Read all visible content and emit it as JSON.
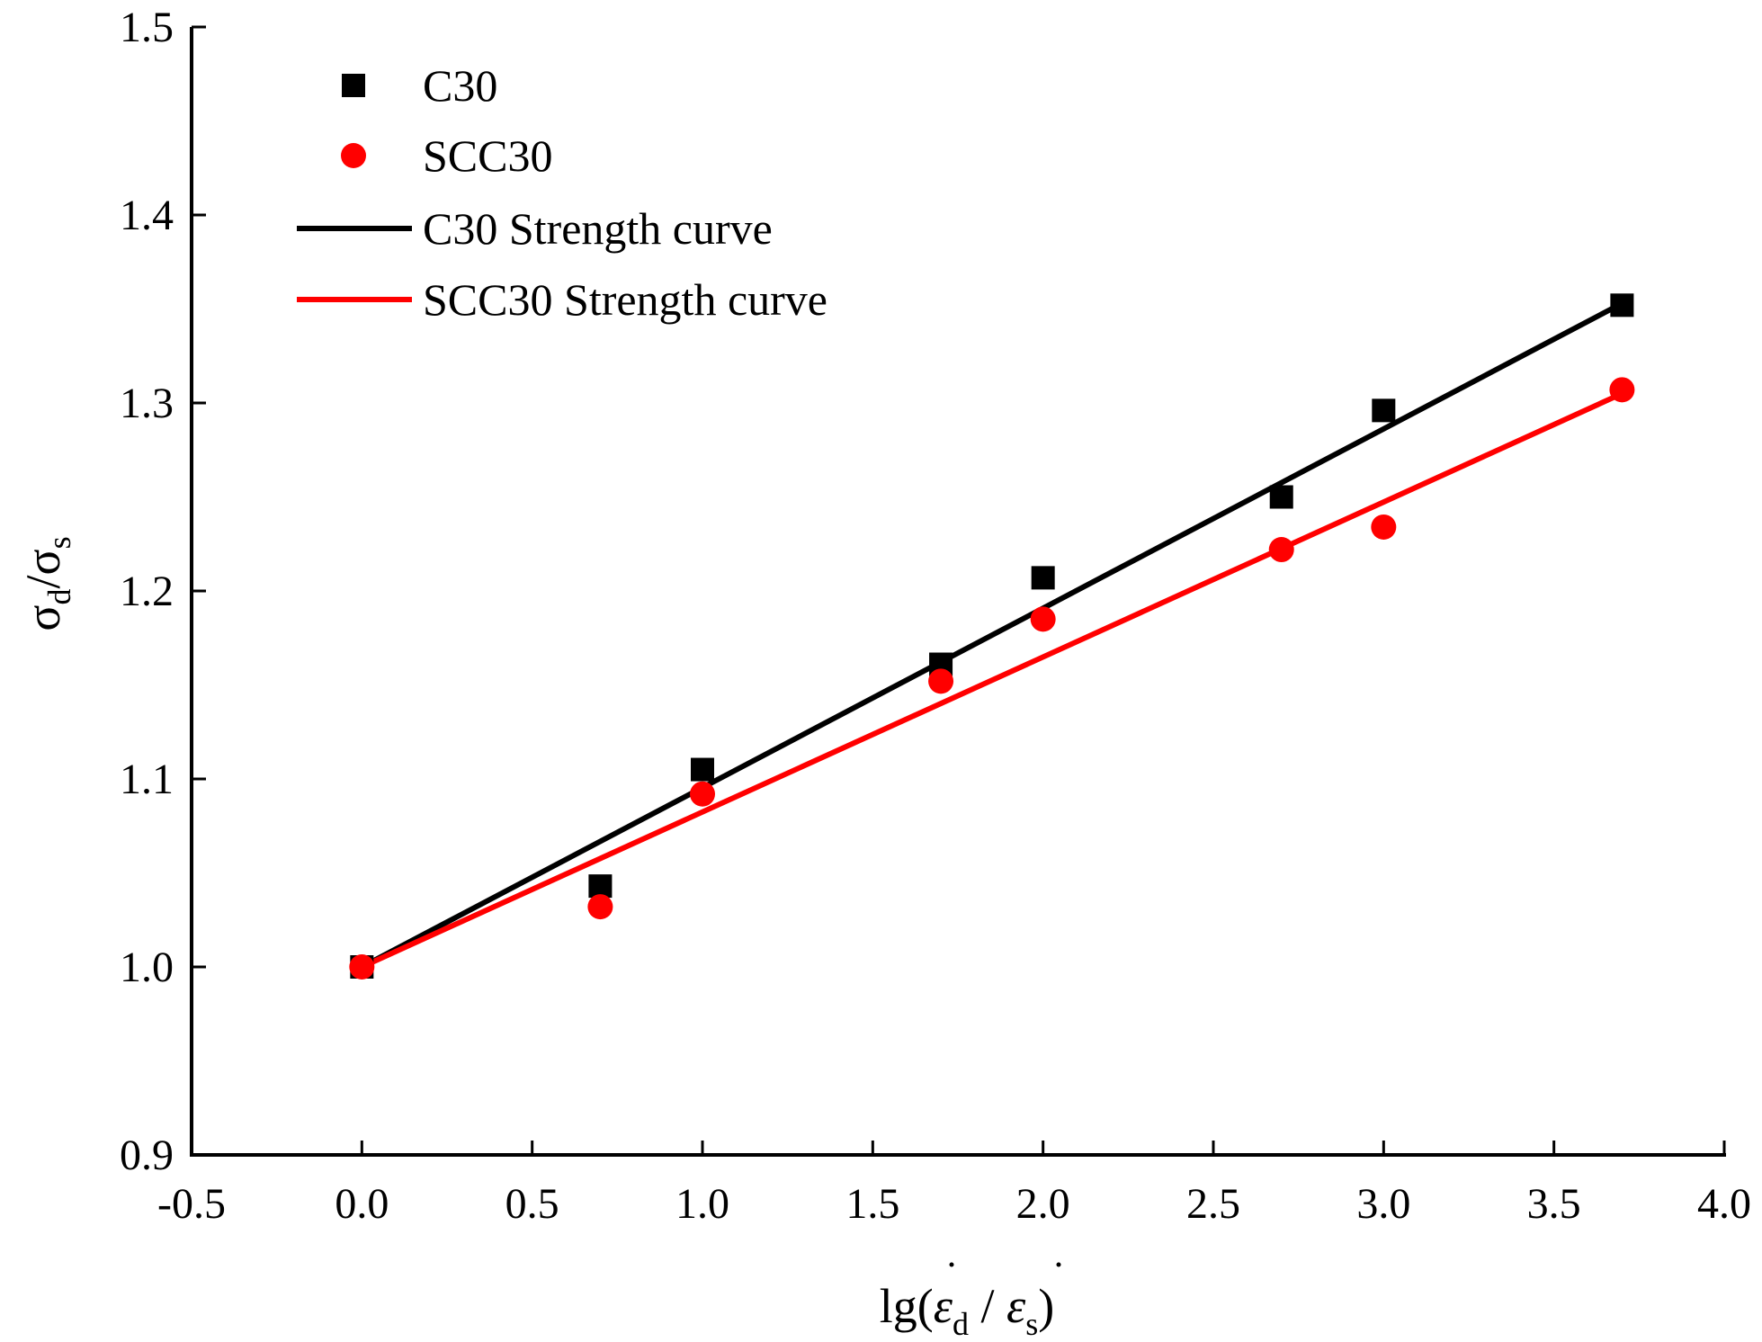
{
  "chart_data": {
    "type": "scatter",
    "title": "",
    "xlabel": {
      "prefix": "lg(",
      "eps": "ε",
      "num_sub": "d",
      "sep": " / ",
      "den_sub": "s",
      "suffix": ")"
    },
    "ylabel": {
      "num": "σ",
      "num_sub": "d",
      "sep": "/",
      "den": "σ",
      "den_sub": "s"
    },
    "xlim": [
      -0.5,
      4.0
    ],
    "ylim": [
      0.9,
      1.5
    ],
    "xticks": [
      "-0.5",
      "0.0",
      "0.5",
      "1.0",
      "1.5",
      "2.0",
      "2.5",
      "3.0",
      "3.5",
      "4.0"
    ],
    "yticks": [
      "0.9",
      "1.0",
      "1.1",
      "1.2",
      "1.3",
      "1.4",
      "1.5"
    ],
    "grid": false,
    "legend_position": "top-left",
    "series": [
      {
        "name": "C30",
        "kind": "points",
        "marker": "square",
        "color": "#000000",
        "x": [
          0.0,
          0.7,
          1.0,
          1.7,
          2.0,
          2.7,
          3.0,
          3.7
        ],
        "y": [
          1.0,
          1.043,
          1.105,
          1.161,
          1.207,
          1.25,
          1.296,
          1.352
        ]
      },
      {
        "name": "SCC30",
        "kind": "points",
        "marker": "circle",
        "color": "#ff0000",
        "x": [
          0.0,
          0.7,
          1.0,
          1.7,
          2.0,
          2.7,
          3.0,
          3.7
        ],
        "y": [
          1.0,
          1.032,
          1.092,
          1.152,
          1.185,
          1.222,
          1.234,
          1.307
        ]
      },
      {
        "name": "C30 Strength curve",
        "kind": "line",
        "color": "#000000",
        "x": [
          0.0,
          3.7
        ],
        "y": [
          1.0,
          1.353
        ]
      },
      {
        "name": "SCC30 Strength curve",
        "kind": "line",
        "color": "#ff0000",
        "x": [
          0.0,
          3.7
        ],
        "y": [
          1.0,
          1.305
        ]
      }
    ]
  }
}
